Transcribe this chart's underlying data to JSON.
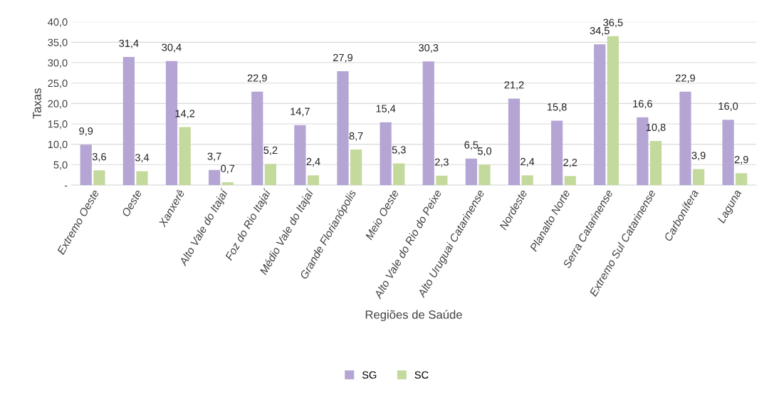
{
  "chart_data": {
    "type": "bar",
    "xlabel": "Regiões de Saúde",
    "ylabel": "Taxas",
    "categories": [
      "Extremo Oeste",
      "Oeste",
      "Xanxerê",
      "Alto Vale do Itajaí",
      "Foz do Rio Itajaí",
      "Médio Vale do Itajaí",
      "Grande Florianópolis",
      "Meio Oeste",
      "Alto Vale do Rio do Peixe",
      "Alto Uruguai Catarinense",
      "Nordeste",
      "Planalto Norte",
      "Serra Catarinense",
      "Extremo Sul Catarinense",
      "Carbonífera",
      "Laguna"
    ],
    "series": [
      {
        "name": "SG",
        "color": "#b4a5d5",
        "values": [
          9.9,
          31.4,
          30.4,
          3.7,
          22.9,
          14.7,
          27.9,
          15.4,
          30.3,
          6.5,
          21.2,
          15.8,
          34.5,
          16.6,
          22.9,
          16.0
        ],
        "value_labels": [
          "9,9",
          "31,4",
          "30,4",
          "3,7",
          "22,9",
          "14,7",
          "27,9",
          "15,4",
          "30,3",
          "6,5",
          "21,2",
          "15,8",
          "34,5",
          "16,6",
          "22,9",
          "16,0"
        ]
      },
      {
        "name": "SC",
        "color": "#c4da9c",
        "values": [
          3.6,
          3.4,
          14.2,
          0.7,
          5.2,
          2.4,
          8.7,
          5.3,
          2.3,
          5.0,
          2.4,
          2.2,
          36.5,
          10.8,
          3.9,
          2.9
        ],
        "value_labels": [
          "3,6",
          "3,4",
          "14,2",
          "0,7",
          "5,2",
          "2,4",
          "8,7",
          "5,3",
          "2,3",
          "5,0",
          "2,4",
          "2,2",
          "36,5",
          "10,8",
          "3,9",
          "2,9"
        ]
      }
    ],
    "ylim": [
      0,
      40
    ],
    "yticks": [
      {
        "value": 0,
        "label": "-"
      },
      {
        "value": 5,
        "label": "5,0"
      },
      {
        "value": 10,
        "label": "10,0"
      },
      {
        "value": 15,
        "label": "15,0"
      },
      {
        "value": 20,
        "label": "20,0"
      },
      {
        "value": 25,
        "label": "25,0"
      },
      {
        "value": 30,
        "label": "30,0"
      },
      {
        "value": 35,
        "label": "35,0"
      },
      {
        "value": 40,
        "label": "40,0"
      }
    ],
    "grid": "y",
    "legend": "bottom"
  }
}
